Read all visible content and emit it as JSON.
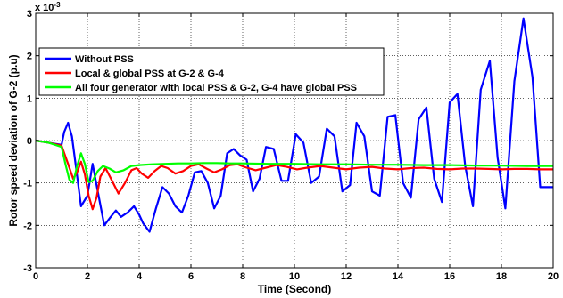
{
  "chart_data": {
    "type": "line",
    "title": "",
    "xlabel": "Time (Second)",
    "ylabel": "Rotor speed deviation of G-2 (p.u)",
    "y_exponent_label": "x 10",
    "y_exponent_power": "-3",
    "xlim": [
      0,
      20
    ],
    "ylim": [
      -3,
      3
    ],
    "xticks": [
      0,
      2,
      4,
      6,
      8,
      10,
      12,
      14,
      16,
      18,
      20
    ],
    "yticks": [
      -3,
      -2,
      -1,
      0,
      1,
      2,
      3
    ],
    "grid": true,
    "legend_position": "top-left",
    "series": [
      {
        "name": "Without PSS",
        "color": "#0000ff",
        "x": [
          0,
          0.5,
          1.0,
          1.1,
          1.25,
          1.4,
          1.55,
          1.75,
          2.0,
          2.2,
          2.4,
          2.65,
          2.9,
          3.1,
          3.3,
          3.55,
          3.8,
          4.0,
          4.15,
          4.4,
          4.65,
          4.9,
          5.15,
          5.4,
          5.65,
          5.9,
          6.15,
          6.4,
          6.65,
          6.9,
          7.15,
          7.4,
          7.65,
          7.9,
          8.15,
          8.4,
          8.65,
          8.9,
          9.2,
          9.5,
          9.75,
          10.05,
          10.35,
          10.65,
          10.95,
          11.25,
          11.55,
          11.85,
          12.15,
          12.4,
          12.7,
          13.0,
          13.3,
          13.6,
          13.9,
          14.2,
          14.5,
          14.8,
          15.1,
          15.4,
          15.7,
          16.0,
          16.3,
          16.6,
          16.9,
          17.2,
          17.55,
          17.85,
          18.15,
          18.5,
          18.85,
          19.2,
          19.5,
          19.85,
          20.0
        ],
        "y": [
          0.0,
          -0.05,
          -0.1,
          0.2,
          0.42,
          0.1,
          -0.6,
          -1.55,
          -1.3,
          -0.55,
          -1.2,
          -2.0,
          -1.8,
          -1.65,
          -1.8,
          -1.7,
          -1.55,
          -1.75,
          -1.95,
          -2.15,
          -1.6,
          -1.1,
          -1.25,
          -1.55,
          -1.7,
          -1.3,
          -0.75,
          -0.72,
          -1.0,
          -1.6,
          -1.3,
          -0.3,
          -0.2,
          -0.35,
          -0.45,
          -1.2,
          -0.9,
          -0.15,
          -0.2,
          -0.95,
          -0.95,
          0.15,
          -0.05,
          -1.0,
          -0.85,
          0.28,
          0.1,
          -1.2,
          -1.05,
          0.42,
          0.1,
          -1.2,
          -1.3,
          0.56,
          0.6,
          -1.0,
          -1.35,
          0.5,
          0.78,
          -0.9,
          -1.45,
          0.9,
          1.1,
          -0.6,
          -1.55,
          1.2,
          1.88,
          -0.4,
          -1.6,
          1.4,
          2.88,
          1.5,
          -1.1,
          -1.1,
          -1.1
        ]
      },
      {
        "name": "Local & global PSS at G-2 & G-4",
        "color": "#ff0000",
        "x": [
          0,
          0.5,
          1.0,
          1.25,
          1.45,
          1.6,
          1.75,
          1.9,
          2.05,
          2.2,
          2.35,
          2.5,
          2.7,
          2.95,
          3.2,
          3.45,
          3.7,
          3.9,
          4.1,
          4.35,
          4.6,
          4.85,
          5.1,
          5.4,
          5.7,
          6.0,
          6.3,
          6.6,
          6.9,
          7.2,
          7.5,
          7.8,
          8.1,
          8.5,
          8.9,
          9.3,
          9.7,
          10.1,
          10.5,
          11.0,
          11.5,
          12.0,
          12.5,
          13.0,
          13.5,
          14.0,
          14.5,
          15.0,
          15.5,
          16.0,
          16.5,
          17.0,
          17.5,
          18.0,
          18.5,
          19.0,
          19.5,
          20.0
        ],
        "y": [
          0.0,
          -0.05,
          -0.12,
          -0.55,
          -0.9,
          -0.75,
          -0.5,
          -0.8,
          -1.3,
          -1.62,
          -1.35,
          -0.85,
          -0.65,
          -0.95,
          -1.25,
          -1.0,
          -0.7,
          -0.65,
          -0.78,
          -0.88,
          -0.72,
          -0.6,
          -0.65,
          -0.78,
          -0.72,
          -0.6,
          -0.56,
          -0.66,
          -0.75,
          -0.68,
          -0.58,
          -0.56,
          -0.63,
          -0.7,
          -0.64,
          -0.58,
          -0.62,
          -0.68,
          -0.64,
          -0.6,
          -0.64,
          -0.68,
          -0.64,
          -0.62,
          -0.66,
          -0.68,
          -0.65,
          -0.64,
          -0.67,
          -0.68,
          -0.66,
          -0.66,
          -0.67,
          -0.68,
          -0.67,
          -0.67,
          -0.68,
          -0.68
        ]
      },
      {
        "name": "All four generator with local PSS & G-2, G-4 have global PSS",
        "color": "#00ff00",
        "x": [
          0,
          0.5,
          1.0,
          1.15,
          1.3,
          1.45,
          1.6,
          1.75,
          1.9,
          2.05,
          2.2,
          2.4,
          2.6,
          2.85,
          3.1,
          3.4,
          3.7,
          4.0,
          4.5,
          5.0,
          5.5,
          6.0,
          6.5,
          7.0,
          7.5,
          8.0,
          9.0,
          10.0,
          11.0,
          12.0,
          13.0,
          14.0,
          15.0,
          16.0,
          17.0,
          18.0,
          19.0,
          20.0
        ],
        "y": [
          0.0,
          -0.05,
          -0.15,
          -0.55,
          -0.92,
          -1.0,
          -0.6,
          -0.3,
          -0.55,
          -0.98,
          -0.95,
          -0.72,
          -0.6,
          -0.66,
          -0.75,
          -0.7,
          -0.6,
          -0.58,
          -0.56,
          -0.55,
          -0.54,
          -0.54,
          -0.53,
          -0.53,
          -0.54,
          -0.54,
          -0.55,
          -0.55,
          -0.56,
          -0.56,
          -0.57,
          -0.57,
          -0.58,
          -0.58,
          -0.59,
          -0.59,
          -0.6,
          -0.6
        ]
      }
    ]
  }
}
